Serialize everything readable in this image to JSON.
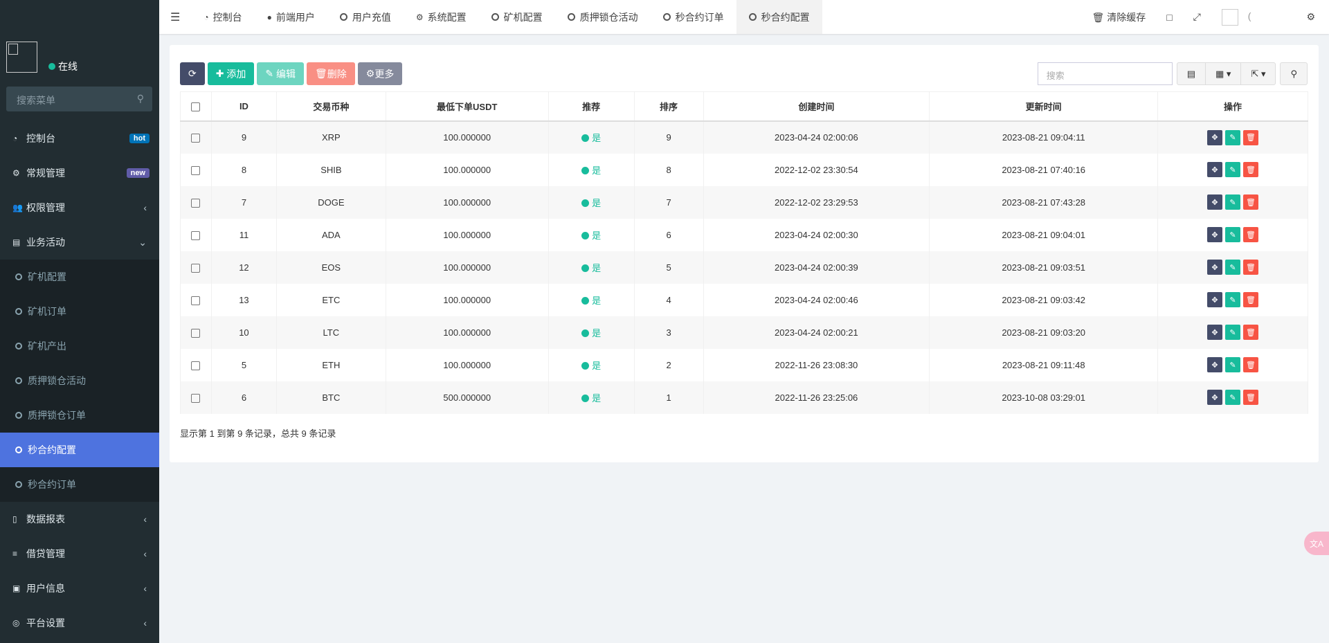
{
  "sidebar": {
    "status": "在线",
    "search_placeholder": "搜索菜单",
    "items": [
      {
        "label": "控制台",
        "icon": "dashboard-icon",
        "badge": "hot",
        "badge_color": "#0073b7"
      },
      {
        "label": "常规管理",
        "icon": "cogs-icon",
        "badge": "new",
        "badge_color": "#605ca8"
      },
      {
        "label": "权限管理",
        "icon": "group-icon"
      },
      {
        "label": "业务活动",
        "icon": "id-card-icon"
      }
    ],
    "subitems": [
      "矿机配置",
      "矿机订单",
      "矿机产出",
      "质押锁仓活动",
      "质押锁仓订单",
      "秒合约配置",
      "秒合约订单"
    ],
    "items2": [
      {
        "label": "数据报表",
        "icon": "file-icon"
      },
      {
        "label": "借贷管理",
        "icon": "list-icon"
      },
      {
        "label": "用户信息",
        "icon": "address-book-icon"
      },
      {
        "label": "平台设置",
        "icon": "circle-icon"
      }
    ]
  },
  "topbar": {
    "tabs": [
      "控制台",
      "前端用户",
      "用户充值",
      "系统配置",
      "矿机配置",
      "质押锁仓活动",
      "秒合约订单",
      "秒合约配置"
    ],
    "clear_cache": "清除缓存",
    "user_text": "("
  },
  "toolbar": {
    "add": "添加",
    "edit": "编辑",
    "delete": "删除",
    "more": "更多",
    "search_placeholder": "搜索"
  },
  "table": {
    "headers": [
      "ID",
      "交易币种",
      "最低下单USDT",
      "推荐",
      "排序",
      "创建时间",
      "更新时间",
      "操作"
    ],
    "rows": [
      [
        "9",
        "XRP",
        "100.000000",
        "是",
        "9",
        "2023-04-24 02:00:06",
        "2023-08-21 09:04:11"
      ],
      [
        "8",
        "SHIB",
        "100.000000",
        "是",
        "8",
        "2022-12-02 23:30:54",
        "2023-08-21 07:40:16"
      ],
      [
        "7",
        "DOGE",
        "100.000000",
        "是",
        "7",
        "2022-12-02 23:29:53",
        "2023-08-21 07:43:28"
      ],
      [
        "11",
        "ADA",
        "100.000000",
        "是",
        "6",
        "2023-04-24 02:00:30",
        "2023-08-21 09:04:01"
      ],
      [
        "12",
        "EOS",
        "100.000000",
        "是",
        "5",
        "2023-04-24 02:00:39",
        "2023-08-21 09:03:51"
      ],
      [
        "13",
        "ETC",
        "100.000000",
        "是",
        "4",
        "2023-04-24 02:00:46",
        "2023-08-21 09:03:42"
      ],
      [
        "10",
        "LTC",
        "100.000000",
        "是",
        "3",
        "2023-04-24 02:00:21",
        "2023-08-21 09:03:20"
      ],
      [
        "5",
        "ETH",
        "100.000000",
        "是",
        "2",
        "2022-11-26 23:08:30",
        "2023-08-21 09:11:48"
      ],
      [
        "6",
        "BTC",
        "500.000000",
        "是",
        "1",
        "2022-11-26 23:25:06",
        "2023-10-08 03:29:01"
      ]
    ]
  },
  "footer": "显示第 1 到第 9 条记录，总共 9 条记录"
}
